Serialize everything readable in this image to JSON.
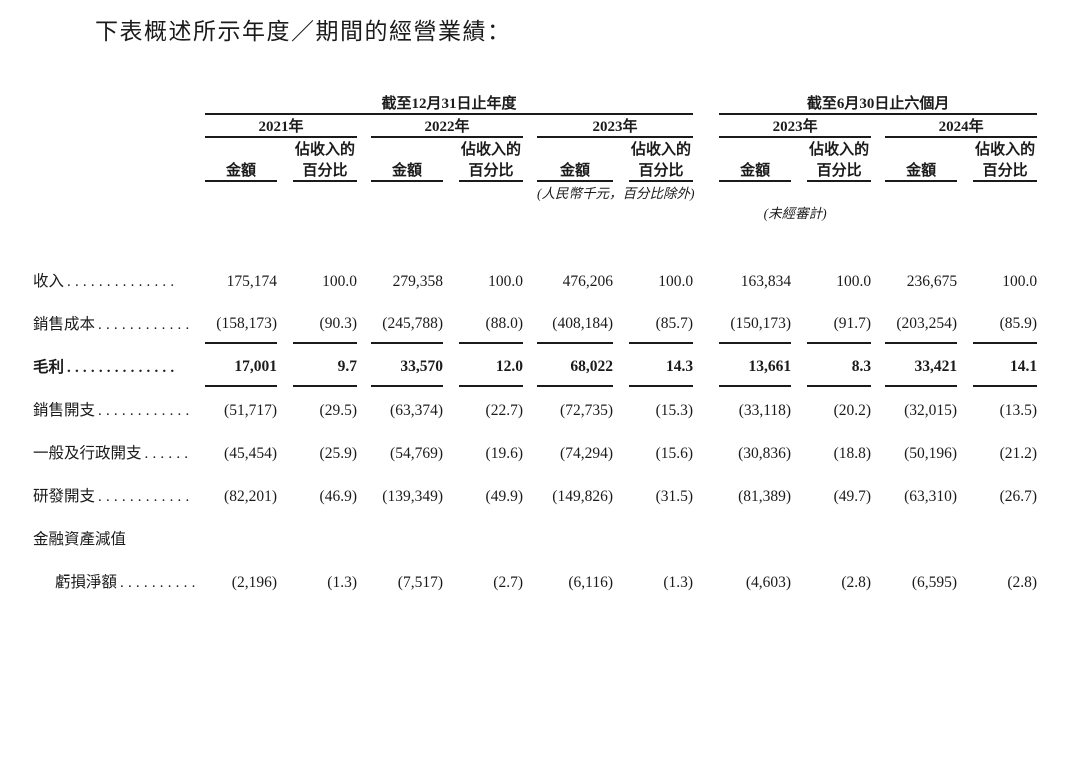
{
  "page": {
    "title": "下表概述所示年度／期間的經營業績："
  },
  "colors": {
    "text": "#1b1b1b",
    "rule": "#1b1b1b",
    "background": "#ffffff"
  },
  "table": {
    "groups": [
      {
        "label": "截至12月31日止年度",
        "years": [
          "2021年",
          "2022年",
          "2023年"
        ]
      },
      {
        "label": "截至6月30日止六個月",
        "years": [
          "2023年",
          "2024年"
        ]
      }
    ],
    "subheaders": {
      "amount": "金額",
      "pct_line1": "佔收入的",
      "pct_line2": "百分比"
    },
    "notes": {
      "units": "(人民幣千元，百分比除外)",
      "unaudited": "(未經審計)"
    },
    "rows": [
      {
        "label": "收入",
        "dots": "..............",
        "values": [
          "175,174",
          "100.0",
          "279,358",
          "100.0",
          "476,206",
          "100.0",
          "163,834",
          "100.0",
          "236,675",
          "100.0"
        ]
      },
      {
        "label": "銷售成本",
        "dots": "............",
        "rule": true,
        "values": [
          "(158,173)",
          "(90.3)",
          "(245,788)",
          "(88.0)",
          "(408,184)",
          "(85.7)",
          "(150,173)",
          "(91.7)",
          "(203,254)",
          "(85.9)"
        ]
      },
      {
        "label": "毛利",
        "dots": "..............",
        "bold": true,
        "rule": true,
        "values": [
          "17,001",
          "9.7",
          "33,570",
          "12.0",
          "68,022",
          "14.3",
          "13,661",
          "8.3",
          "33,421",
          "14.1"
        ]
      },
      {
        "label": "銷售開支",
        "dots": "............",
        "values": [
          "(51,717)",
          "(29.5)",
          "(63,374)",
          "(22.7)",
          "(72,735)",
          "(15.3)",
          "(33,118)",
          "(20.2)",
          "(32,015)",
          "(13.5)"
        ]
      },
      {
        "label": "一般及行政開支",
        "dots": "......",
        "values": [
          "(45,454)",
          "(25.9)",
          "(54,769)",
          "(19.6)",
          "(74,294)",
          "(15.6)",
          "(30,836)",
          "(18.8)",
          "(50,196)",
          "(21.2)"
        ]
      },
      {
        "label": "研發開支",
        "dots": "............",
        "values": [
          "(82,201)",
          "(46.9)",
          "(139,349)",
          "(49.9)",
          "(149,826)",
          "(31.5)",
          "(81,389)",
          "(49.7)",
          "(63,310)",
          "(26.7)"
        ]
      },
      {
        "label": "金融資產減值",
        "dots": "",
        "values": []
      },
      {
        "label": "虧損淨額",
        "dots": "..........",
        "indent": true,
        "values": [
          "(2,196)",
          "(1.3)",
          "(7,517)",
          "(2.7)",
          "(6,116)",
          "(1.3)",
          "(4,603)",
          "(2.8)",
          "(6,595)",
          "(2.8)"
        ]
      }
    ]
  }
}
